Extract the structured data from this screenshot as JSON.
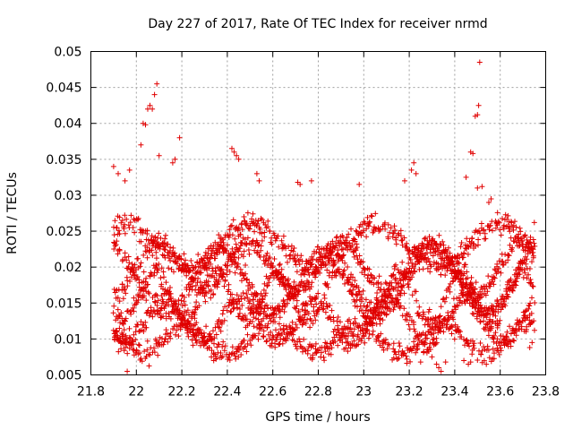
{
  "chart_data": {
    "type": "scatter",
    "title": "Day 227 of 2017, Rate Of TEC Index for receiver nrmd",
    "xlabel": "GPS time / hours",
    "ylabel": "ROTI / TECUs",
    "xlim": [
      21.8,
      23.8
    ],
    "ylim": [
      0.005,
      0.05
    ],
    "xticks": [
      21.8,
      22.0,
      22.2,
      22.4,
      22.6,
      22.8,
      23.0,
      23.2,
      23.4,
      23.6,
      23.8
    ],
    "xtick_labels": [
      "21.8",
      "22",
      "22.2",
      "22.4",
      "22.6",
      "22.8",
      "23",
      "23.2",
      "23.4",
      "23.6",
      "23.8"
    ],
    "yticks": [
      0.005,
      0.01,
      0.015,
      0.02,
      0.025,
      0.03,
      0.035,
      0.04,
      0.045,
      0.05
    ],
    "ytick_labels": [
      "0.005",
      "0.01",
      "0.015",
      "0.02",
      "0.025",
      "0.03",
      "0.035",
      "0.04",
      "0.045",
      "0.05"
    ],
    "grid": true,
    "marker": "+",
    "point_color": "#e00000",
    "series": [
      {
        "name": "ROTI",
        "x_range": [
          21.9,
          23.75
        ],
        "sample_interval_hours": 0.0025,
        "tracks": [
          {
            "base": 0.02,
            "amp": 0.0035,
            "period": 0.4,
            "phase": 0.0
          },
          {
            "base": 0.0125,
            "amp": 0.003,
            "period": 0.33,
            "phase": 1.3
          },
          {
            "base": 0.023,
            "amp": 0.003,
            "period": 0.55,
            "phase": 2.1
          },
          {
            "base": 0.016,
            "amp": 0.0035,
            "period": 0.27,
            "phase": 3.0
          },
          {
            "base": 0.018,
            "amp": 0.0045,
            "period": 0.47,
            "phase": 4.2
          },
          {
            "base": 0.01,
            "amp": 0.002,
            "period": 0.38,
            "phase": 5.0
          }
        ],
        "noise": 0.0014,
        "highlighted_points": [
          {
            "x": 21.9,
            "y": 0.034
          },
          {
            "x": 21.92,
            "y": 0.033
          },
          {
            "x": 21.95,
            "y": 0.032
          },
          {
            "x": 21.97,
            "y": 0.0335
          },
          {
            "x": 21.96,
            "y": 0.0055
          },
          {
            "x": 22.02,
            "y": 0.037
          },
          {
            "x": 22.03,
            "y": 0.04
          },
          {
            "x": 22.04,
            "y": 0.0398
          },
          {
            "x": 22.05,
            "y": 0.042
          },
          {
            "x": 22.06,
            "y": 0.0425
          },
          {
            "x": 22.07,
            "y": 0.042
          },
          {
            "x": 22.08,
            "y": 0.044
          },
          {
            "x": 22.09,
            "y": 0.0455
          },
          {
            "x": 22.1,
            "y": 0.0355
          },
          {
            "x": 22.16,
            "y": 0.0345
          },
          {
            "x": 22.17,
            "y": 0.035
          },
          {
            "x": 22.19,
            "y": 0.038
          },
          {
            "x": 22.33,
            "y": 0.0075
          },
          {
            "x": 22.34,
            "y": 0.007
          },
          {
            "x": 22.35,
            "y": 0.0072
          },
          {
            "x": 22.42,
            "y": 0.0365
          },
          {
            "x": 22.43,
            "y": 0.036
          },
          {
            "x": 22.44,
            "y": 0.0355
          },
          {
            "x": 22.45,
            "y": 0.035
          },
          {
            "x": 22.53,
            "y": 0.033
          },
          {
            "x": 22.54,
            "y": 0.032
          },
          {
            "x": 22.71,
            "y": 0.0318
          },
          {
            "x": 22.72,
            "y": 0.0315
          },
          {
            "x": 22.77,
            "y": 0.032
          },
          {
            "x": 22.98,
            "y": 0.0315
          },
          {
            "x": 23.18,
            "y": 0.032
          },
          {
            "x": 23.21,
            "y": 0.0335
          },
          {
            "x": 23.22,
            "y": 0.0345
          },
          {
            "x": 23.23,
            "y": 0.033
          },
          {
            "x": 23.19,
            "y": 0.0072
          },
          {
            "x": 23.25,
            "y": 0.0068
          },
          {
            "x": 23.3,
            "y": 0.0075
          },
          {
            "x": 23.32,
            "y": 0.0065
          },
          {
            "x": 23.33,
            "y": 0.006
          },
          {
            "x": 23.34,
            "y": 0.0055
          },
          {
            "x": 23.36,
            "y": 0.0068
          },
          {
            "x": 23.44,
            "y": 0.007
          },
          {
            "x": 23.46,
            "y": 0.0065
          },
          {
            "x": 23.47,
            "y": 0.0068
          },
          {
            "x": 23.45,
            "y": 0.0325
          },
          {
            "x": 23.47,
            "y": 0.036
          },
          {
            "x": 23.48,
            "y": 0.0358
          },
          {
            "x": 23.49,
            "y": 0.041
          },
          {
            "x": 23.5,
            "y": 0.0412
          },
          {
            "x": 23.505,
            "y": 0.0425
          },
          {
            "x": 23.51,
            "y": 0.0485
          },
          {
            "x": 23.5,
            "y": 0.031
          },
          {
            "x": 23.52,
            "y": 0.0312
          },
          {
            "x": 23.55,
            "y": 0.029
          },
          {
            "x": 23.56,
            "y": 0.0295
          },
          {
            "x": 23.65,
            "y": 0.0262
          },
          {
            "x": 23.75,
            "y": 0.0262
          },
          {
            "x": 23.74,
            "y": 0.0095
          },
          {
            "x": 23.73,
            "y": 0.0088
          }
        ]
      }
    ]
  }
}
